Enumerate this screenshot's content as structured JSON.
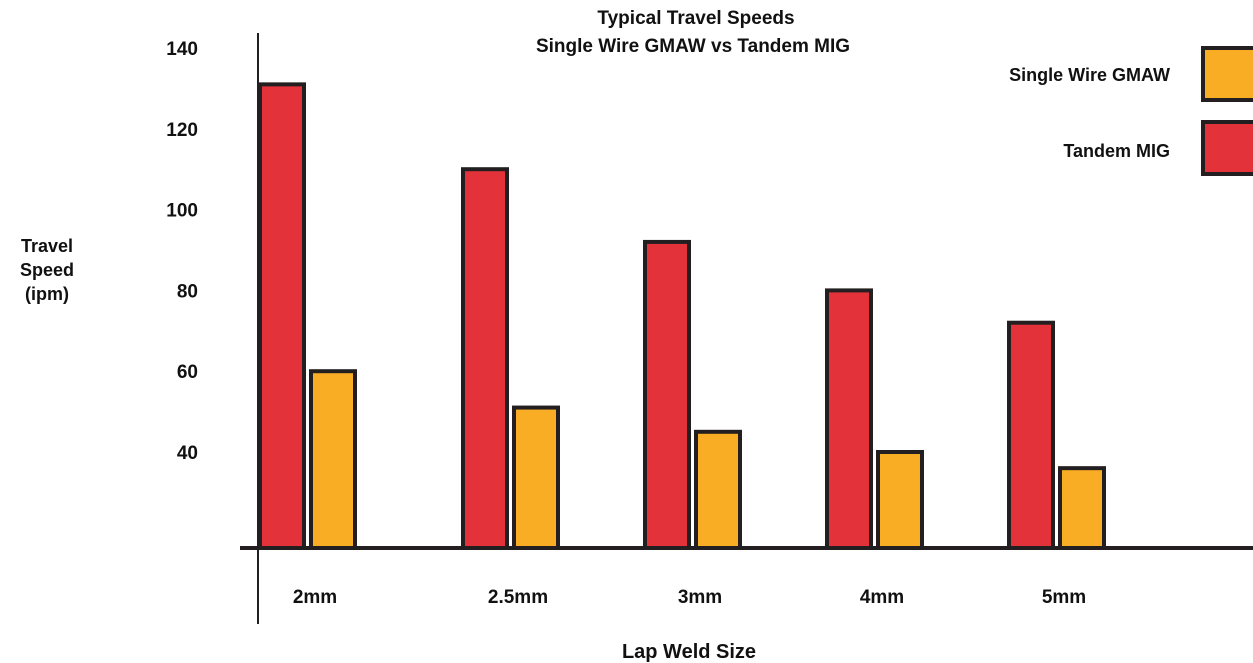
{
  "chart_data": {
    "type": "bar",
    "title": "Typical Travel Speeds",
    "subtitle": "Single Wire GMAW vs Tandem MIG",
    "ylabel_lines": [
      "Travel",
      "Speed",
      "(ipm)"
    ],
    "xlabel": "Lap Weld Size",
    "categories": [
      "2mm",
      "2.5mm",
      "3mm",
      "4mm",
      "5mm"
    ],
    "y_ticks": [
      40,
      60,
      80,
      100,
      120,
      140
    ],
    "ylim": [
      20,
      145
    ],
    "grid": false,
    "legend_position": "top-right",
    "series": [
      {
        "name": "Tandem MIG",
        "color": "#E3323A",
        "values": [
          131,
          110,
          92,
          80,
          72
        ]
      },
      {
        "name": "Single Wire GMAW",
        "color": "#F9AD24",
        "values": [
          60,
          51,
          45,
          40,
          36
        ]
      }
    ],
    "legend": [
      {
        "name": "Single Wire GMAW",
        "color": "#F9AD24"
      },
      {
        "name": "Tandem MIG",
        "color": "#E3323A"
      }
    ],
    "stroke_color": "#231F20"
  }
}
